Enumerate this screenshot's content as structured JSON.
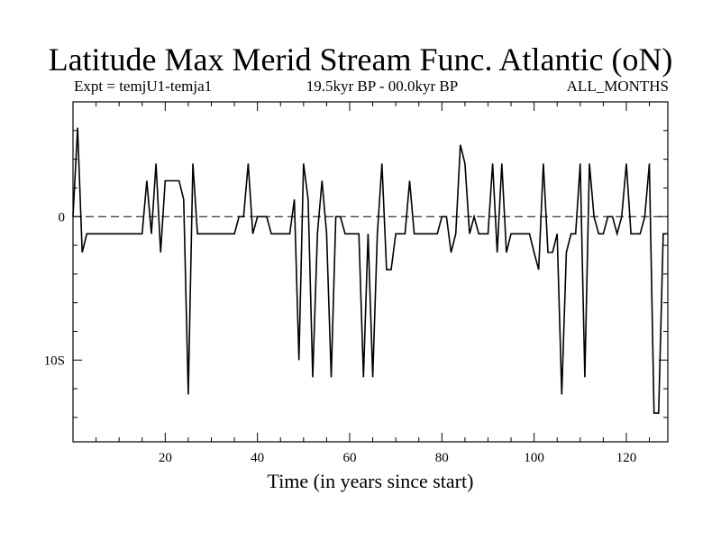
{
  "chart_data": {
    "type": "line",
    "title": "Latitude Max Merid Stream Func. Atlantic (oN)",
    "subtitle_left": "Expt = temjU1-temja1",
    "subtitle_center": "19.5kyr BP - 00.0kyr BP",
    "subtitle_right": "ALL_MONTHS",
    "xlabel": "Time (in years since start)",
    "ylabel": "",
    "xlim": [
      0,
      129
    ],
    "ylim": [
      -15.7,
      8
    ],
    "x_ticks": [
      20,
      40,
      60,
      80,
      100,
      120
    ],
    "x_tick_labels": [
      "20",
      "40",
      "60",
      "80",
      "100",
      "120"
    ],
    "y_ticks": [
      0,
      -10
    ],
    "y_tick_labels": [
      "0",
      "10S"
    ],
    "zero_line": true,
    "series": [
      {
        "name": "temjU1-temja1",
        "x": [
          0,
          1,
          2,
          3,
          4,
          5,
          6,
          7,
          8,
          9,
          10,
          11,
          12,
          13,
          14,
          15,
          16,
          17,
          18,
          19,
          20,
          21,
          22,
          23,
          24,
          25,
          26,
          27,
          28,
          29,
          30,
          31,
          32,
          33,
          34,
          35,
          36,
          37,
          38,
          39,
          40,
          41,
          42,
          43,
          44,
          45,
          46,
          47,
          48,
          49,
          50,
          51,
          52,
          53,
          54,
          55,
          56,
          57,
          58,
          59,
          60,
          61,
          62,
          63,
          64,
          65,
          66,
          67,
          68,
          69,
          70,
          71,
          72,
          73,
          74,
          75,
          76,
          77,
          78,
          79,
          80,
          81,
          82,
          83,
          84,
          85,
          86,
          87,
          88,
          89,
          90,
          91,
          92,
          93,
          94,
          95,
          96,
          97,
          98,
          99,
          100,
          101,
          102,
          103,
          104,
          105,
          106,
          107,
          108,
          109,
          110,
          111,
          112,
          113,
          114,
          115,
          116,
          117,
          118,
          119,
          120,
          121,
          122,
          123,
          124,
          125,
          126,
          127,
          128,
          129
        ],
        "values": [
          0,
          6.2,
          -2.5,
          -1.2,
          -1.2,
          -1.2,
          -1.2,
          -1.2,
          -1.2,
          -1.2,
          -1.2,
          -1.2,
          -1.2,
          -1.2,
          -1.2,
          -1.2,
          2.5,
          -1.2,
          3.7,
          -2.5,
          2.5,
          2.5,
          2.5,
          2.5,
          1.2,
          -12.4,
          3.7,
          -1.2,
          -1.2,
          -1.2,
          -1.2,
          -1.2,
          -1.2,
          -1.2,
          -1.2,
          -1.2,
          0,
          0,
          3.7,
          -1.2,
          0,
          0,
          0,
          -1.2,
          -1.2,
          -1.2,
          -1.2,
          -1.2,
          1.2,
          -10,
          3.7,
          1.2,
          -11.2,
          -1.2,
          2.5,
          -1.2,
          -11.2,
          0,
          0,
          -1.2,
          -1.2,
          -1.2,
          -1.2,
          -11.2,
          -1.2,
          -11.2,
          -1.2,
          3.7,
          -3.7,
          -3.7,
          -1.2,
          -1.2,
          -1.2,
          2.5,
          -1.2,
          -1.2,
          -1.2,
          -1.2,
          -1.2,
          -1.2,
          0,
          0,
          -2.5,
          -1.2,
          5,
          3.7,
          -1.2,
          0,
          -1.2,
          -1.2,
          -1.2,
          3.7,
          -2.5,
          3.7,
          -2.5,
          -1.2,
          -1.2,
          -1.2,
          -1.2,
          -1.2,
          -2.5,
          -3.7,
          3.7,
          -2.5,
          -2.5,
          -1.2,
          -12.4,
          -2.5,
          -1.2,
          -1.2,
          3.7,
          -11.2,
          3.7,
          0,
          -1.2,
          -1.2,
          0,
          0,
          -1.2,
          0,
          3.7,
          -1.2,
          -1.2,
          -1.2,
          0,
          3.7,
          -13.7,
          -13.7,
          -1.2,
          -1.2
        ]
      }
    ]
  }
}
